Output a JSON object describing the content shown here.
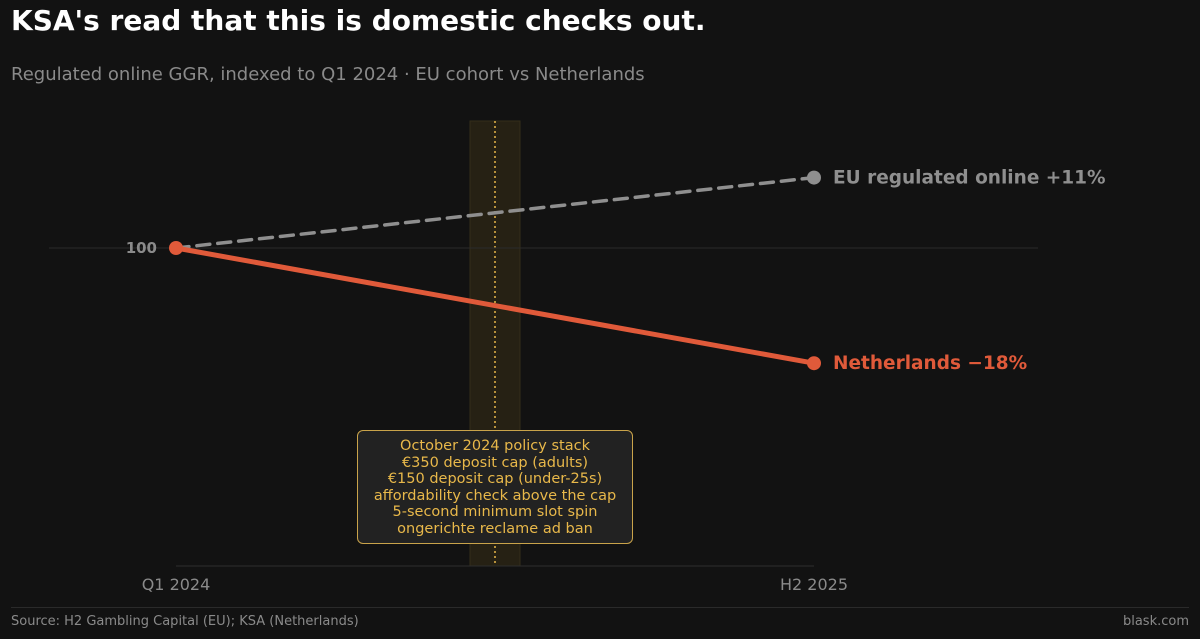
{
  "title": "KSA's read that this is domestic checks out.",
  "subtitle": "Regulated online GGR, indexed to Q1 2024  ·  EU cohort vs Netherlands",
  "source": "Source: H2 Gambling Capital (EU);  KSA (Netherlands)",
  "brand": "blask.com",
  "colors": {
    "eu": "#8f8f8f",
    "nl": "#e05a3a",
    "policy": "#e8b84a"
  },
  "annotation": {
    "lines": [
      "October 2024 policy stack",
      "€350 deposit cap (adults)",
      "€150 deposit cap (under-25s)",
      "affordability check above the cap",
      "5-second minimum slot spin",
      "ongerichte reclame ad ban"
    ]
  },
  "chart_data": {
    "type": "line",
    "x": [
      "Q1 2024",
      "H2 2025"
    ],
    "x_tick_labels": [
      "Q1 2024",
      "H2 2025"
    ],
    "y_tick_labels": [
      "100"
    ],
    "baseline": 100,
    "series": [
      {
        "name": "EU regulated online",
        "change_label": "+11%",
        "values": [
          100,
          111
        ],
        "style": "dashed"
      },
      {
        "name": "Netherlands",
        "change_label": "−18%",
        "values": [
          100,
          82
        ],
        "style": "solid"
      }
    ],
    "policy_marker": {
      "x": "October 2024",
      "fraction_of_period": 0.5
    },
    "ylim": [
      50,
      120
    ],
    "grid": false,
    "legend": "direct labels at line ends"
  }
}
